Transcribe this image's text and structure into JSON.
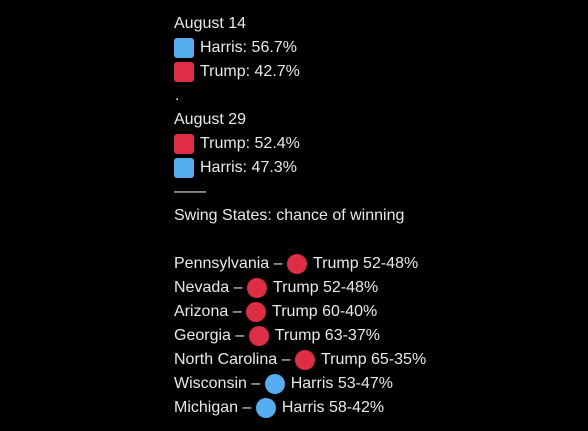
{
  "colors": {
    "harris": "#55acee",
    "trump": "#dd2e44",
    "background": "#000000",
    "text": "#e7e9ea"
  },
  "post": {
    "block1": {
      "date": "August 14",
      "rows": [
        {
          "icon": "blue-square-emoji",
          "text": "Harris: 56.7%"
        },
        {
          "icon": "red-square-emoji",
          "text": "Trump: 42.7%"
        }
      ]
    },
    "separator_dot": ".",
    "block2": {
      "date": "August 29",
      "rows": [
        {
          "icon": "red-square-emoji",
          "text": "Trump: 52.4%"
        },
        {
          "icon": "blue-square-emoji",
          "text": "Harris: 47.3%"
        }
      ]
    },
    "divider": "——",
    "swing_heading": "Swing States: chance of winning",
    "states": [
      {
        "state": "Pennsylvania",
        "dash": " – ",
        "icon": "red-circle-emoji",
        "result": "Trump 52-48%"
      },
      {
        "state": "Nevada",
        "dash": " – ",
        "icon": "red-circle-emoji",
        "result": "Trump 52-48%"
      },
      {
        "state": "Arizona",
        "dash": " – ",
        "icon": "red-circle-emoji",
        "result": "Trump 60-40%"
      },
      {
        "state": "Georgia",
        "dash": " – ",
        "icon": "red-circle-emoji",
        "result": "Trump 63-37%"
      },
      {
        "state": "North Carolina",
        "dash": " – ",
        "icon": "red-circle-emoji",
        "result": "Trump 65-35%"
      },
      {
        "state": "Wisconsin",
        "dash": " – ",
        "icon": "blue-circle-emoji",
        "result": "Harris 53-47%"
      },
      {
        "state": "Michigan",
        "dash": " – ",
        "icon": "blue-circle-emoji",
        "result": "Harris 58-42%"
      }
    ]
  }
}
